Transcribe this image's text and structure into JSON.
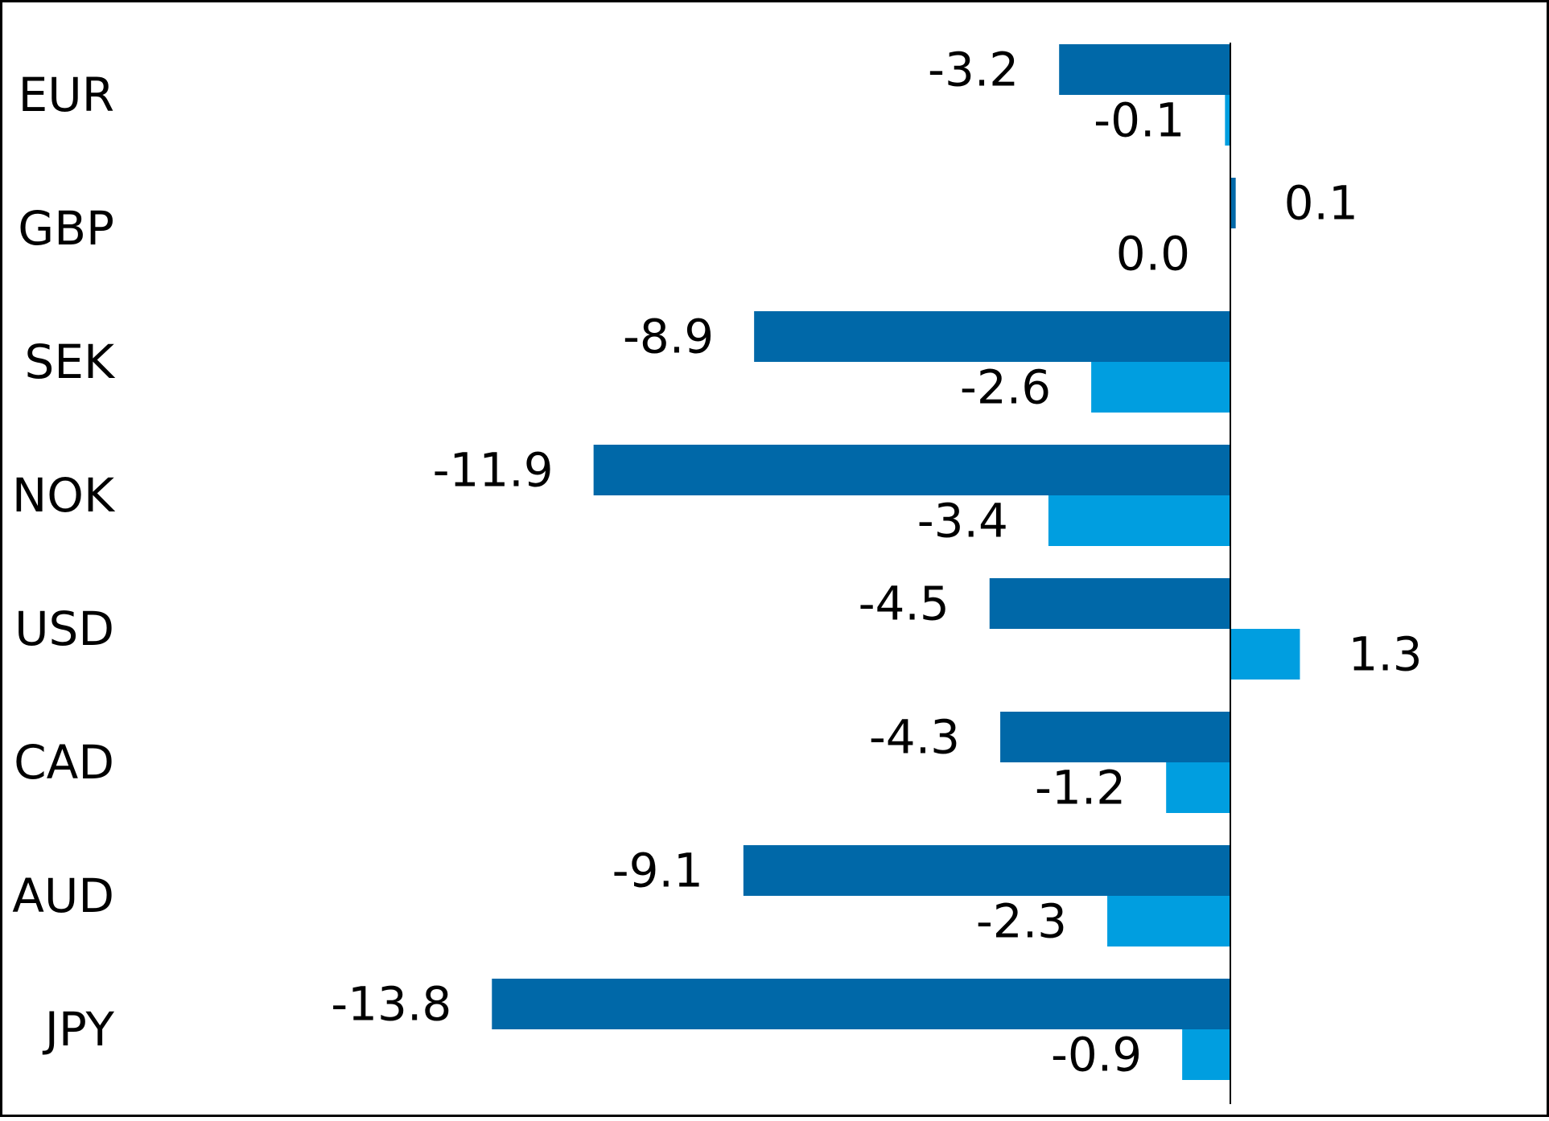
{
  "chart_data": {
    "type": "bar",
    "orientation": "horizontal",
    "categories": [
      "EUR",
      "GBP",
      "SEK",
      "NOK",
      "USD",
      "CAD",
      "AUD",
      "JPY"
    ],
    "series": [
      {
        "values": [
          -3.2,
          0.1,
          -8.9,
          -11.9,
          -4.5,
          -4.3,
          -9.1,
          -13.8
        ],
        "labels": [
          "-3.2",
          "0.1",
          "-8.9",
          "-11.9",
          "-4.5",
          "-4.3",
          "-9.1",
          "-13.8"
        ],
        "color": "#0068a8"
      },
      {
        "values": [
          -0.1,
          0.0,
          -2.6,
          -3.4,
          1.3,
          -1.2,
          -2.3,
          -0.9
        ],
        "labels": [
          "-0.1",
          "0.0",
          "-2.6",
          "-3.4",
          "1.3",
          "-1.2",
          "-2.3",
          "-0.9"
        ],
        "color": "#009ee0"
      }
    ],
    "title": "",
    "xlabel": "",
    "ylabel": "",
    "grid": false,
    "legend": "none",
    "data_labels": true
  }
}
